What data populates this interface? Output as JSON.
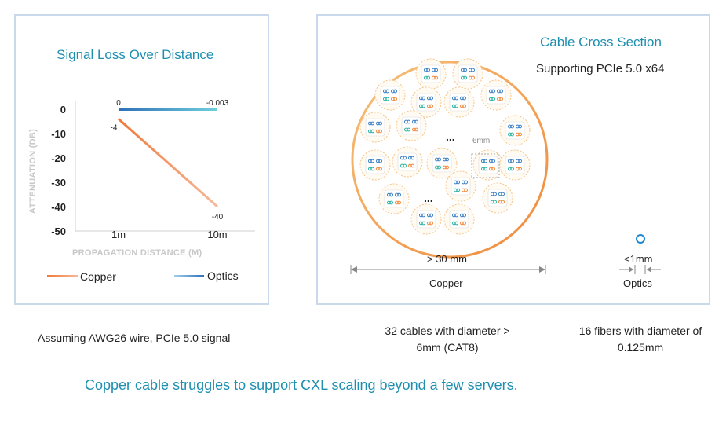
{
  "chart_data": {
    "type": "line",
    "title": "Signal Loss Over Distance",
    "xlabel": "PROPAGATION DISTANCE (M)",
    "ylabel": "ATTENUATION (DB)",
    "categories": [
      "1m",
      "10m"
    ],
    "ylim": [
      -50,
      0
    ],
    "yticks": [
      0,
      -10,
      -20,
      -30,
      -40,
      -50
    ],
    "grid": false,
    "legend": "bottom",
    "series": [
      {
        "name": "Copper",
        "values": [
          -4,
          -40
        ],
        "labels": [
          "-4",
          "-40"
        ],
        "color": "#f08a4b"
      },
      {
        "name": "Optics",
        "values": [
          0,
          -0.003
        ],
        "labels": [
          "0",
          "-0.003"
        ],
        "color": "#3a7fc4"
      }
    ]
  },
  "cross_section": {
    "title": "Cable Cross Section",
    "subtitle": "Supporting PCIe 5.0 x64",
    "cable_size_label": "6mm",
    "ellipsis": "...",
    "copper_dimension": "> 30 mm",
    "copper_label": "Copper",
    "optics_dimension": "<1mm",
    "optics_label": "Optics",
    "copper_color": "#f39a4e",
    "optics_color": "#1e88d0"
  },
  "captions": {
    "left": "Assuming AWG26 wire, PCIe 5.0 signal",
    "middle_line1": "32 cables with diameter >",
    "middle_line2": "6mm (CAT8)",
    "right_line1": "16 fibers with diameter of",
    "right_line2": "0.125mm"
  },
  "footer": "Copper cable struggles to support CXL scaling beyond a few servers."
}
